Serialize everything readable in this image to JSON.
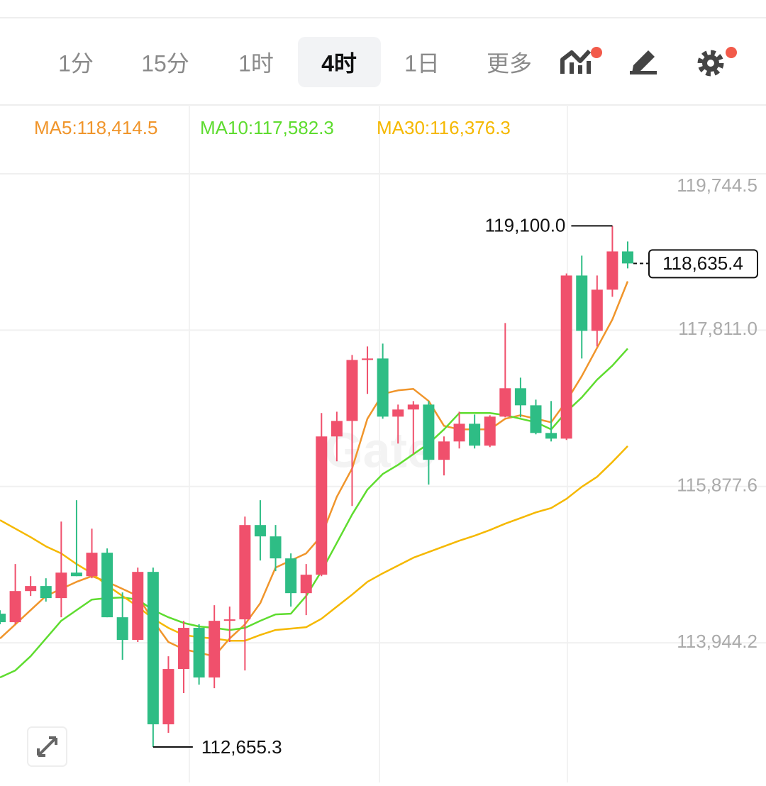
{
  "toolbar": {
    "tabs": [
      "1分",
      "15分",
      "1时",
      "4时",
      "1日",
      "更多"
    ],
    "active_tab": 3
  },
  "chart_data": {
    "type": "candlestick",
    "watermark": "Gate",
    "up_color": "#f0506c",
    "down_color": "#2ebd85",
    "open": [
      114304,
      114199,
      114584,
      114646,
      114497,
      114812,
      114768,
      115058,
      114260,
      113980,
      114821,
      112936,
      113620,
      114129,
      113515,
      114216,
      114234,
      115400,
      115260,
      114988,
      114558,
      114786,
      116496,
      116688,
      117442,
      117460,
      116741,
      116829,
      116890,
      116207,
      116434,
      116653,
      116382,
      116741,
      117092,
      116881,
      116539,
      116469,
      118486,
      117802,
      118311,
      118784
    ],
    "high": [
      114347,
      114918,
      114768,
      114742,
      115443,
      115707,
      115356,
      115111,
      114567,
      114874,
      114874,
      113778,
      114216,
      114173,
      114409,
      114392,
      115505,
      115707,
      115400,
      115050,
      114918,
      116785,
      116802,
      117504,
      117609,
      117644,
      116890,
      116934,
      116934,
      116496,
      116802,
      116767,
      116758,
      117899,
      117223,
      116951,
      116934,
      118512,
      118732,
      118486,
      119100.0,
      118907
    ],
    "low": [
      114173,
      114173,
      114523,
      114453,
      114260,
      114768,
      114742,
      114260,
      113734,
      113954,
      112655.3,
      112831,
      113322,
      113427,
      113383,
      113954,
      113602,
      114962,
      114830,
      114392,
      114286,
      114768,
      116189,
      115636,
      117022,
      116715,
      116408,
      116277,
      115900,
      116014,
      116347,
      116347,
      116364,
      116732,
      116732,
      116522,
      116434,
      116452,
      117460,
      117609,
      118223,
      118574
    ],
    "close": [
      114199,
      114584,
      114646,
      114497,
      114812,
      114768,
      115058,
      114260,
      113980,
      114821,
      112936,
      113620,
      114129,
      113515,
      114216,
      114234,
      115400,
      115260,
      114988,
      114558,
      114786,
      116496,
      116688,
      117442,
      117460,
      116741,
      116829,
      116890,
      116207,
      116434,
      116653,
      116382,
      116741,
      117092,
      116881,
      116539,
      116469,
      118486,
      117802,
      118311,
      118784,
      118635.4
    ],
    "series": [
      {
        "name": "MA5:118,414.5",
        "color": "#f0952b",
        "values": [
          113997,
          114172,
          114348,
          114523,
          114611,
          114698,
          114768,
          114698,
          114611,
          114523,
          114216,
          113954,
          113865,
          113821,
          113778,
          113997,
          114172,
          114435,
          114874,
          114962,
          115050,
          115268,
          115750,
          116101,
          116715,
          117022,
          117066,
          117083,
          116934,
          116627,
          116583,
          116583,
          116583,
          116715,
          116759,
          116715,
          116671,
          116934,
          117241,
          117592,
          117942,
          118414.5
        ]
      },
      {
        "name": "MA10:117,582.3",
        "color": "#5edc2f",
        "values": [
          113515,
          113602,
          113778,
          113997,
          114216,
          114348,
          114479,
          114497,
          114505,
          114479,
          114348,
          114260,
          114190,
          114146,
          114129,
          114102,
          114129,
          114216,
          114295,
          114304,
          114523,
          114830,
          115180,
          115531,
          115838,
          116031,
          116145,
          116277,
          116408,
          116583,
          116785,
          116785,
          116785,
          116759,
          116715,
          116671,
          116583,
          116802,
          116978,
          117197,
          117372,
          117582.3
        ]
      },
      {
        "name": "MA30:116,376.3",
        "color": "#f5b800",
        "values": [
          115461,
          115356,
          115251,
          115137,
          115050,
          114918,
          114803,
          114654,
          114523,
          114392,
          114242,
          114129,
          114041,
          114014,
          113997,
          113970,
          113970,
          114041,
          114102,
          114120,
          114137,
          114242,
          114392,
          114540,
          114698,
          114803,
          114900,
          114996,
          115066,
          115137,
          115207,
          115268,
          115338,
          115417,
          115487,
          115557,
          115610,
          115724,
          115873,
          115996,
          116180,
          116376.3
        ]
      }
    ],
    "ylim": [
      112217,
      120595
    ],
    "yticks": [
      {
        "value": 119744.5,
        "label": "119,744.5"
      },
      {
        "value": 117811.0,
        "label": "117,811.0"
      },
      {
        "value": 115877.6,
        "label": "115,877.6"
      },
      {
        "value": 113944.2,
        "label": "113,944.2"
      }
    ],
    "grid": true,
    "annotations": {
      "high": "119,100.0",
      "low": "112,655.3",
      "last": "118,635.4"
    }
  }
}
